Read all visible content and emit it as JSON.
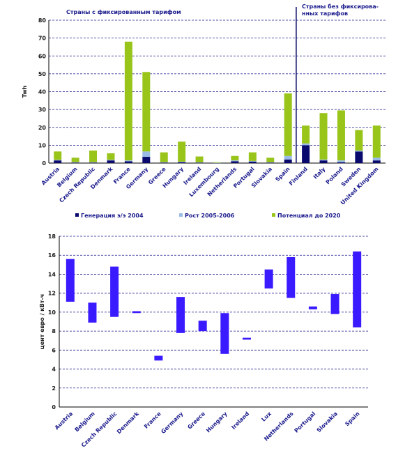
{
  "chart_data": [
    {
      "type": "bar",
      "stacked": true,
      "ylabel": "Twh",
      "ylim": [
        0,
        80
      ],
      "yticks": [
        0,
        10,
        20,
        30,
        40,
        50,
        60,
        70,
        80
      ],
      "grid": true,
      "legend_position": "bottom",
      "annotations": [
        {
          "text": "Страны с фиксированным тарифом",
          "group": "left"
        },
        {
          "text": "Страны без фиксирова-",
          "group": "right"
        },
        {
          "text": "нных тарифов",
          "group": "right"
        }
      ],
      "categories": [
        "Austria",
        "Belgium",
        "Czech Republic",
        "Denmark",
        "France",
        "Germany",
        "Greece",
        "Hungary",
        "Ireland",
        "Luxembourg",
        "Netherlands",
        "Portugal",
        "Slovakia",
        "Spain",
        "Finland",
        "Italy",
        "Poland",
        "Sweden",
        "United Kingdom"
      ],
      "divider_after_index": 13,
      "series": [
        {
          "name": "Генерация э/э 2004",
          "color": "#0a0a6e",
          "values": [
            1.5,
            0.3,
            0.3,
            1.5,
            1.0,
            3.5,
            0.3,
            0.5,
            0.2,
            0.1,
            1.0,
            0.8,
            0.3,
            2.0,
            10.0,
            1.5,
            0.5,
            6.5,
            1.5
          ]
        },
        {
          "name": "Рост 2005-2006",
          "color": "#99bbe6",
          "values": [
            0.3,
            0.2,
            0.2,
            0.3,
            0.5,
            3.0,
            0.2,
            0.3,
            0.2,
            0.1,
            0.5,
            0.4,
            0.2,
            2.0,
            1.0,
            0.5,
            1.0,
            0.5,
            1.5
          ]
        },
        {
          "name": "Потенциал до 2020",
          "color": "#99c41a",
          "values": [
            4.7,
            2.5,
            6.5,
            3.7,
            66.5,
            44.5,
            5.5,
            11.2,
            3.3,
            0.3,
            2.5,
            4.8,
            2.5,
            35.0,
            10.0,
            26.0,
            28.0,
            11.5,
            18.0
          ]
        }
      ]
    },
    {
      "type": "range_bar",
      "ylabel": "цент евро / кВт-ч",
      "ylim": [
        0,
        18
      ],
      "yticks": [
        0,
        2,
        4,
        6,
        8,
        10,
        12,
        14,
        16,
        18
      ],
      "grid": true,
      "color": "#3a1aff",
      "categories": [
        "Austria",
        "Belgium",
        "Czech Republic",
        "Denmark",
        "France",
        "Germany",
        "Greece",
        "Hungary",
        "Ireland",
        "Lux",
        "Netherlands",
        "Portugal",
        "Slovakia",
        "Spain"
      ],
      "ranges": [
        [
          11.1,
          15.6
        ],
        [
          8.9,
          11.0
        ],
        [
          9.5,
          14.8
        ],
        [
          9.9,
          10.1
        ],
        [
          4.9,
          5.4
        ],
        [
          7.8,
          11.6
        ],
        [
          8.0,
          9.1
        ],
        [
          5.6,
          9.9
        ],
        [
          7.1,
          7.3
        ],
        [
          12.5,
          14.5
        ],
        [
          11.5,
          15.8
        ],
        [
          10.3,
          10.6
        ],
        [
          9.8,
          11.9
        ],
        [
          8.4,
          16.4
        ]
      ]
    }
  ]
}
